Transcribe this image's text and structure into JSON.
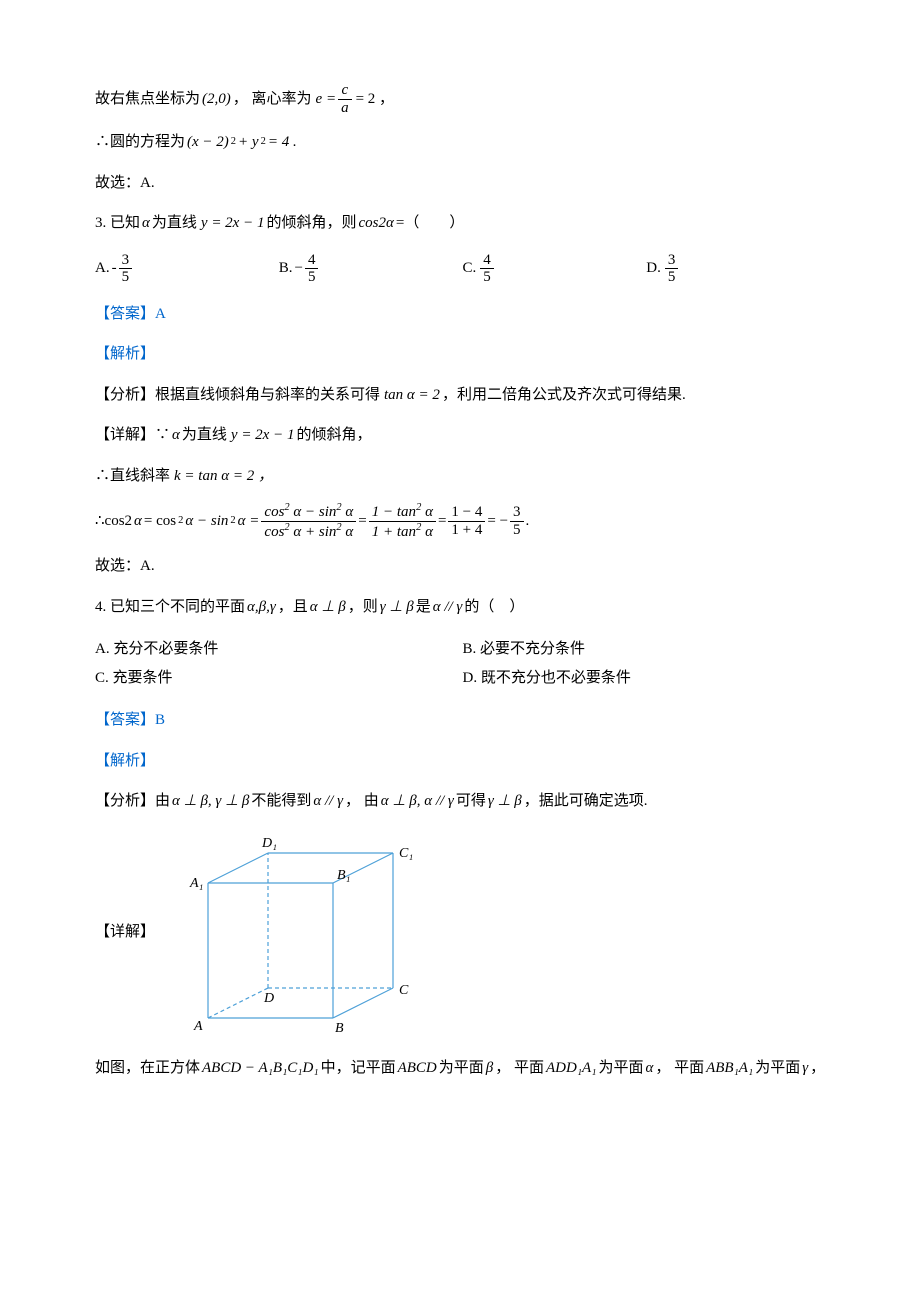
{
  "line1_a": "故右焦点坐标为",
  "line1_b": "(2,0)",
  "line1_c": "， 离心率为",
  "line1_eq_lhs": "e =",
  "line1_frac_num": "c",
  "line1_frac_den": "a",
  "line1_eq_rhs": "= 2 ，",
  "line2_a": "∴圆的方程为",
  "line2_eq": "(x − 2)",
  "line2_sup1": "2",
  "line2_plus": " + y",
  "line2_sup2": "2",
  "line2_eq2": " = 4 .",
  "line3": "故选：A.",
  "q3_a": "3. 已知",
  "q3_alpha": "α",
  "q3_b": "为直线",
  "q3_eq": "y = 2x − 1",
  "q3_c": "的倾斜角，则",
  "q3_cos": "cos2α",
  "q3_d": " =（　　）",
  "q3_optA_lbl": "A. ",
  "q3_optA_neg": "-",
  "q3_optA_num": "3",
  "q3_optA_den": "5",
  "q3_optB_lbl": "B. ",
  "q3_optB_neg": "−",
  "q3_optB_num": "4",
  "q3_optB_den": "5",
  "q3_optC_lbl": "C. ",
  "q3_optC_num": "4",
  "q3_optC_den": "5",
  "q3_optD_lbl": "D. ",
  "q3_optD_num": "3",
  "q3_optD_den": "5",
  "ans3": "【答案】A",
  "jiexi": "【解析】",
  "q3_fenxi_a": "【分析】根据直线倾斜角与斜率的关系可得",
  "q3_fenxi_eq": "tan α = 2",
  "q3_fenxi_b": "，利用二倍角公式及齐次式可得结果.",
  "q3_detail_a": "【详解】∵",
  "q3_detail_alpha": "α",
  "q3_detail_b": "为直线",
  "q3_detail_eq": "y = 2x − 1",
  "q3_detail_c": "的倾斜角，",
  "q3_slope_a": "∴直线斜率",
  "q3_slope_eq": "k = tan α = 2 ，",
  "q3_cos_a": "∴cos2",
  "q3_cos_alpha": "α",
  "q3_cos_eq1": " = cos",
  "q3_cos_sup": "2",
  "q3_cos_b": " α − sin",
  "q3_cos_c": " α = ",
  "q3_f1_num": "cos² α − sin² α",
  "q3_f1_den": "cos² α + sin² α",
  "q3_cos_d": " = ",
  "q3_f2_num": "1 − tan² α",
  "q3_f2_den": "1 + tan² α",
  "q3_f3_num": "1 − 4",
  "q3_f3_den": "1 + 4",
  "q3_cos_e": " = −",
  "q3_f4_num": "3",
  "q3_f4_den": "5",
  "q3_cos_f": ".",
  "q3_choose": "故选：A.",
  "q4_a": "4. 已知三个不同的平面",
  "q4_greek1": "α,β,γ",
  "q4_b": "，且",
  "q4_greek2": "α ⊥ β",
  "q4_c": "，则",
  "q4_greek3": "γ ⊥ β",
  "q4_d": "是",
  "q4_greek4": "α // γ",
  "q4_e": "的（　）",
  "q4_optA": "A. 充分不必要条件",
  "q4_optB": "B. 必要不充分条件",
  "q4_optC": "C. 充要条件",
  "q4_optD": "D. 既不充分也不必要条件",
  "ans4": "【答案】B",
  "q4_fenxi_a": "【分析】由",
  "q4_fenxi_g1": "α ⊥ β, γ ⊥ β",
  "q4_fenxi_b": "不能得到",
  "q4_fenxi_g2": "α // γ",
  "q4_fenxi_c": "， 由",
  "q4_fenxi_g3": "α ⊥ β, α // γ",
  "q4_fenxi_d": "可得",
  "q4_fenxi_g4": "γ ⊥ β",
  "q4_fenxi_e": "，据此可确定选项.",
  "q4_detail_label": "【详解】",
  "cube": {
    "labels": {
      "A": "A",
      "B": "B",
      "C": "C",
      "D": "D",
      "A1": "A₁",
      "B1": "B₁",
      "C1": "C₁",
      "D1": "D₁"
    },
    "stroke_solid": "#4da0d8",
    "stroke_dash": "#4da0d8",
    "label_color": "#000000",
    "dash_pattern": "4 3",
    "fontsize": 14
  },
  "q4_detail_a": "如图，在正方体",
  "q4_detail_cube": "ABCD − A₁B₁C₁D₁",
  "q4_detail_b": "中，记平面",
  "q4_detail_p1": "ABCD",
  "q4_detail_c": "为平面",
  "q4_detail_g1": "β",
  "q4_detail_d": "， 平面",
  "q4_detail_p2": "ADD₁A₁",
  "q4_detail_e": "为平面",
  "q4_detail_g2": "α",
  "q4_detail_f": "， 平面",
  "q4_detail_p3": "ABB₁A₁",
  "q4_detail_g": "为平面",
  "q4_detail_g3": "γ",
  "q4_detail_h": "，"
}
